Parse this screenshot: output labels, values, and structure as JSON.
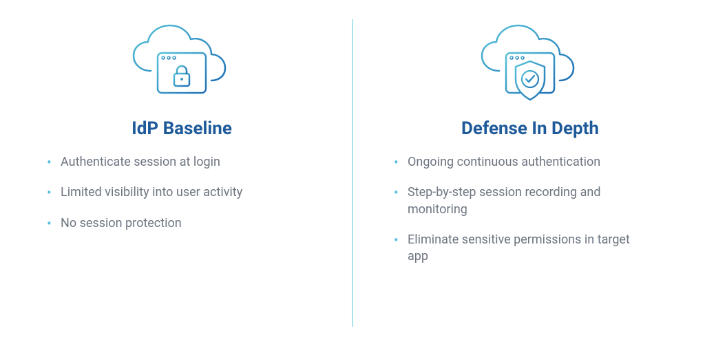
{
  "background_color": "#ffffff",
  "divider_color": "#57c4d9",
  "gradient": {
    "from": "#57c4d9",
    "to": "#1e6fb5"
  },
  "title_color": "#1e5a9a",
  "bullet_text_color": "#6d7580",
  "bullet_marker_color": "#58bfe0",
  "left": {
    "title": "IdP Baseline",
    "bullets": [
      "Authenticate session at login",
      "Limited visibility into user activity",
      "No session protection"
    ],
    "icon": "cloud-browser-lock"
  },
  "right": {
    "title": "Defense In Depth",
    "bullets": [
      "Ongoing continuous authentication",
      "Step-by-step session recording and monitoring",
      "Eliminate sensitive permissions in target app"
    ],
    "icon": "cloud-browser-shield"
  }
}
